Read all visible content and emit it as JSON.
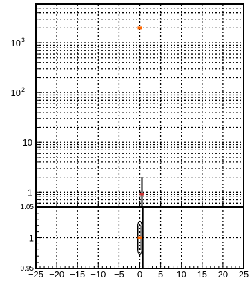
{
  "chart_data": [
    {
      "type": "scatter",
      "panel": "top",
      "x_axis": {
        "scale": "linear",
        "range": [
          -25,
          25
        ],
        "shared_with": "bottom"
      },
      "y_axis": {
        "scale": "log",
        "range": [
          0.5,
          6000
        ]
      },
      "y_tick_labels": [
        {
          "mantissa": "1",
          "exponent": "",
          "value": 1
        },
        {
          "mantissa": "10",
          "exponent": "",
          "value": 10
        },
        {
          "mantissa": "10",
          "exponent": "2",
          "value": 100
        },
        {
          "mantissa": "10",
          "exponent": "3",
          "value": 1000
        }
      ],
      "grid": true,
      "points": [
        {
          "x": 0,
          "y": 2000,
          "yerr_low": 1900,
          "yerr_high": 2100,
          "color": "#ff6600"
        },
        {
          "x": 0.5,
          "y": 0.9,
          "yerr_low": 0.5,
          "yerr_high": 2.0,
          "color": "#cc3333"
        }
      ]
    },
    {
      "type": "scatter",
      "panel": "bottom",
      "x_axis": {
        "scale": "linear",
        "range": [
          -25,
          25
        ],
        "tick_labels": [
          "−25",
          "−20",
          "−15",
          "−10",
          "−5",
          "0",
          "5",
          "10",
          "15",
          "20",
          "25"
        ],
        "tick_values": [
          -25,
          -20,
          -15,
          -10,
          -5,
          0,
          5,
          10,
          15,
          20,
          25
        ]
      },
      "y_axis": {
        "scale": "linear",
        "range": [
          0.95,
          1.05
        ],
        "tick_labels": [
          "0.95",
          "1",
          "1.05"
        ],
        "tick_values": [
          0.95,
          1.0,
          1.05
        ]
      },
      "grid": true,
      "points": [
        {
          "x": 0,
          "y": 1.0,
          "color": "#ff6600"
        }
      ],
      "vertical_line": {
        "x": 0.7,
        "y_from": 0.95,
        "y_to": 1.05
      }
    }
  ]
}
